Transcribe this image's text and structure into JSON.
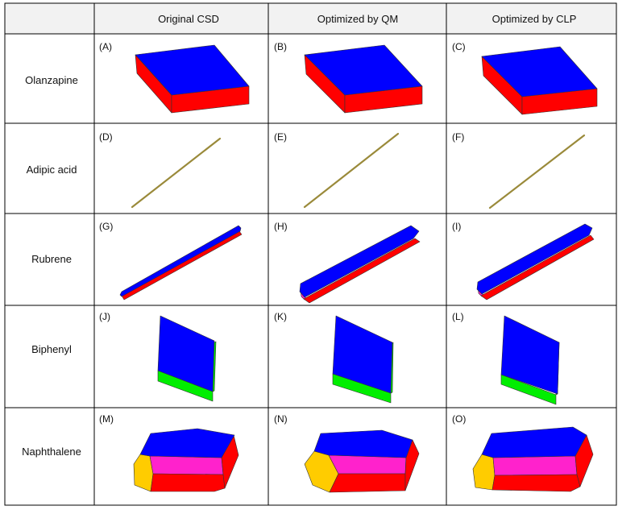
{
  "table": {
    "columns": [
      "",
      "Original CSD",
      "Optimized by QM",
      "Optimized by CLP"
    ],
    "rows": [
      {
        "label": "Olanzapine",
        "panels": [
          "(A)",
          "(B)",
          "(C)"
        ],
        "shape": "slab"
      },
      {
        "label": "Adipic acid",
        "panels": [
          "(D)",
          "(E)",
          "(F)"
        ],
        "shape": "needle"
      },
      {
        "label": "Rubrene",
        "panels": [
          "(G)",
          "(H)",
          "(I)"
        ],
        "shape": "rod"
      },
      {
        "label": "Biphenyl",
        "panels": [
          "(J)",
          "(K)",
          "(L)"
        ],
        "shape": "plate"
      },
      {
        "label": "Naphthalene",
        "panels": [
          "(M)",
          "(N)",
          "(O)"
        ],
        "shape": "prism"
      }
    ]
  },
  "colors": {
    "blue": "#0000ff",
    "red": "#ff0000",
    "green": "#00ee00",
    "magenta": "#ff22cc",
    "yellow": "#ffcc00",
    "olive": "#9a8a3a",
    "header_bg": "#f2f2f2",
    "grid": "#000000"
  }
}
